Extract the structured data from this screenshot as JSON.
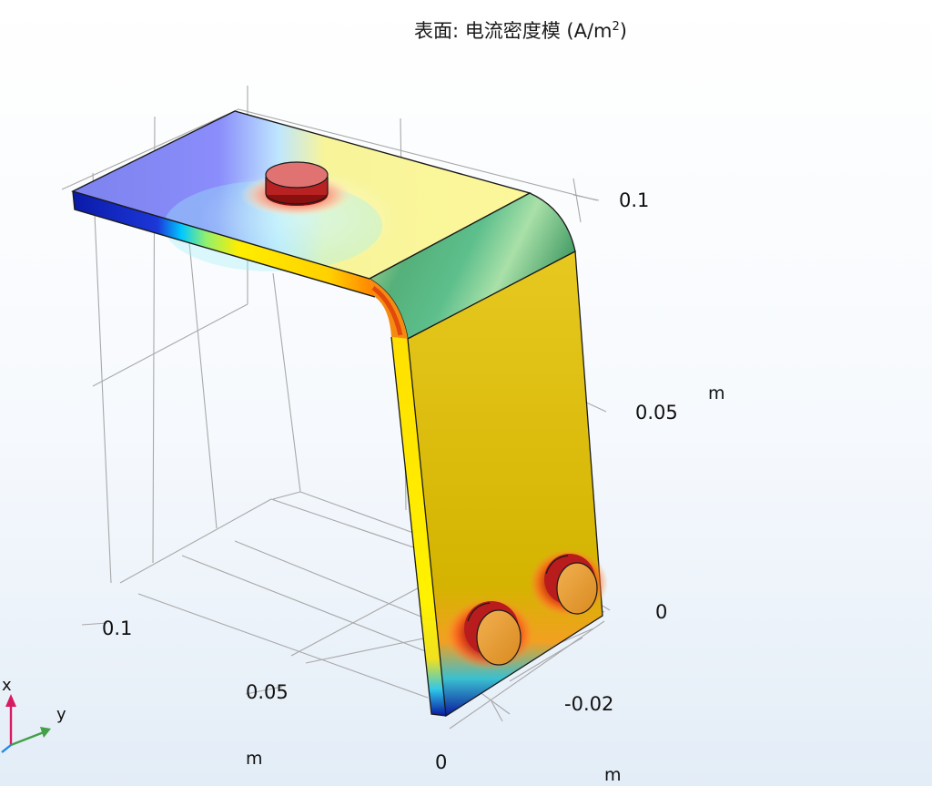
{
  "title": {
    "prefix": "表面: 电流密度模 (A/m",
    "exponent": "2",
    "suffix": ")"
  },
  "axes": {
    "z_axis": {
      "ticks": [
        "0.1",
        "0.05",
        "0"
      ],
      "unit": "m"
    },
    "x_axis": {
      "ticks": [
        "0.1",
        "0.05",
        "0"
      ],
      "unit": "m"
    },
    "y_axis": {
      "ticks": [
        "-0.02"
      ],
      "unit": "m"
    }
  },
  "triad": {
    "x_label": "x",
    "y_label": "y"
  },
  "colors": {
    "background_top": "#ffffff",
    "background_bottom": "#e3edf7",
    "triad_x": "#d81b60",
    "triad_y": "#43a047",
    "triad_z": "#1e88e5"
  }
}
